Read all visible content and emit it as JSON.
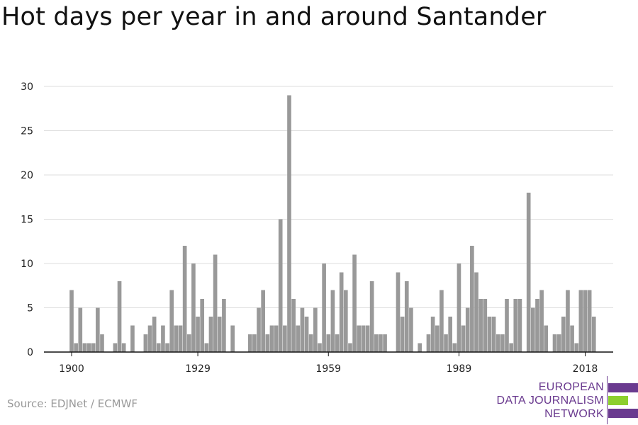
{
  "title": "Hot days per year in and around Santander",
  "source": "Source: EDJNet / ECMWF",
  "logo": {
    "lines": [
      "EUROPEAN",
      "DATA JOURNALISM",
      "NETWORK"
    ],
    "colors": {
      "purple": "#6a3a8f",
      "green": "#8ccf2e"
    }
  },
  "chart_data": {
    "type": "bar",
    "title": "Hot days per year in and around Santander",
    "xlabel": "",
    "ylabel": "",
    "x_start": 1900,
    "x_end": 2021,
    "xticks": [
      1900,
      1929,
      1959,
      1989,
      2018
    ],
    "yticks": [
      0,
      5,
      10,
      15,
      20,
      25,
      30
    ],
    "ylim": [
      0,
      30
    ],
    "grid": true,
    "bar_color": "#999999",
    "values": [
      7,
      1,
      5,
      1,
      1,
      1,
      5,
      2,
      0,
      0,
      1,
      8,
      1,
      0,
      3,
      0,
      0,
      2,
      3,
      4,
      1,
      3,
      1,
      7,
      3,
      3,
      12,
      2,
      10,
      4,
      6,
      1,
      4,
      11,
      4,
      6,
      0,
      3,
      0,
      0,
      0,
      2,
      2,
      5,
      7,
      2,
      3,
      3,
      15,
      3,
      29,
      6,
      3,
      5,
      4,
      2,
      5,
      1,
      10,
      2,
      7,
      2,
      9,
      7,
      1,
      11,
      3,
      3,
      3,
      8,
      2,
      2,
      2,
      0,
      0,
      9,
      4,
      8,
      5,
      0,
      1,
      0,
      2,
      4,
      3,
      7,
      2,
      4,
      1,
      10,
      3,
      5,
      12,
      9,
      6,
      6,
      4,
      4,
      2,
      2,
      6,
      1,
      6,
      6,
      0,
      18,
      5,
      6,
      7,
      3,
      0,
      2,
      2,
      4,
      7,
      3,
      1,
      7,
      7,
      7,
      4
    ]
  }
}
